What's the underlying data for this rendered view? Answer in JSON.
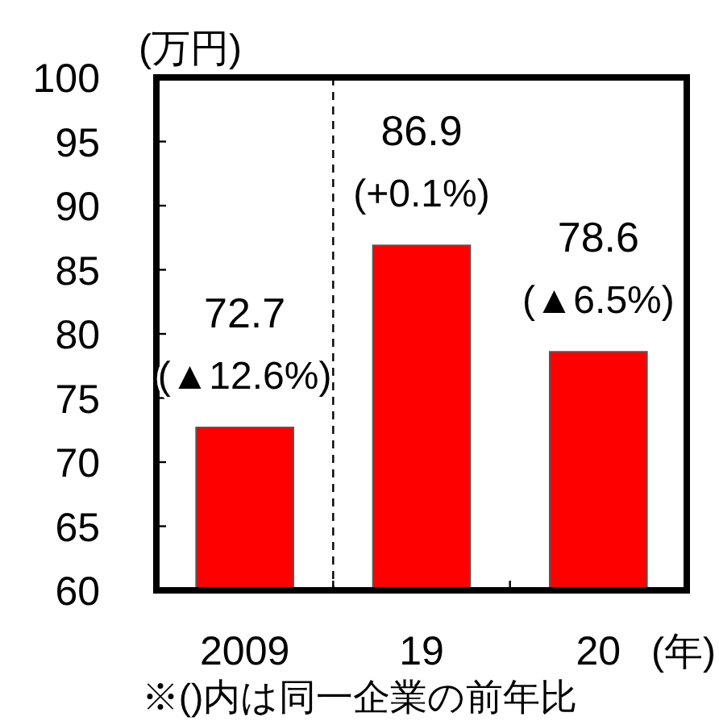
{
  "chart_data": {
    "type": "bar",
    "ylabel": "(万円)",
    "xlabel": "(年)",
    "categories": [
      "2009",
      "19",
      "20"
    ],
    "values": [
      72.7,
      86.9,
      78.6
    ],
    "color": "#ff0000",
    "value_labels": [
      "72.7",
      "86.9",
      "78.6"
    ],
    "annotations": [
      {
        "text": "(▲12.6%)",
        "x": "2009",
        "y": 72.7
      },
      {
        "text": "(+0.1%)",
        "x": "19",
        "y": 86.9
      },
      {
        "text": "(▲6.5%)",
        "x": "20",
        "y": 78.6
      },
      "※()内は同一企業の前年比"
    ],
    "ylim": [
      60,
      100
    ],
    "yticks": [
      60,
      65,
      70,
      75,
      80,
      85,
      90,
      95,
      100
    ],
    "grid": false
  }
}
